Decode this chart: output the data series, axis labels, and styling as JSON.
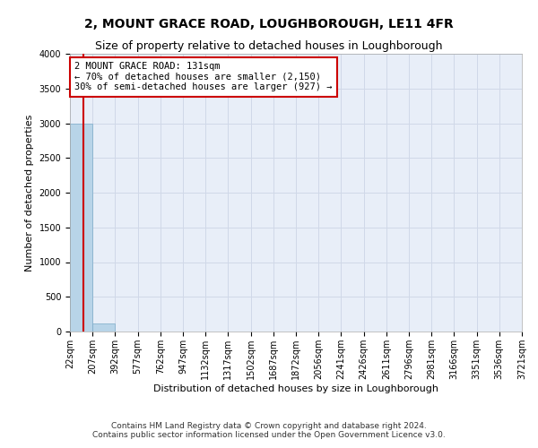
{
  "title": "2, MOUNT GRACE ROAD, LOUGHBOROUGH, LE11 4FR",
  "subtitle": "Size of property relative to detached houses in Loughborough",
  "xlabel": "Distribution of detached houses by size in Loughborough",
  "ylabel": "Number of detached properties",
  "footnote1": "Contains HM Land Registry data © Crown copyright and database right 2024.",
  "footnote2": "Contains public sector information licensed under the Open Government Licence v3.0.",
  "bin_edges": [
    22,
    207,
    392,
    577,
    762,
    947,
    1132,
    1317,
    1502,
    1687,
    1872,
    2056,
    2241,
    2426,
    2611,
    2796,
    2981,
    3166,
    3351,
    3536,
    3721
  ],
  "bin_labels": [
    "22sqm",
    "207sqm",
    "392sqm",
    "577sqm",
    "762sqm",
    "947sqm",
    "1132sqm",
    "1317sqm",
    "1502sqm",
    "1687sqm",
    "1872sqm",
    "2056sqm",
    "2241sqm",
    "2426sqm",
    "2611sqm",
    "2796sqm",
    "2981sqm",
    "3166sqm",
    "3351sqm",
    "3536sqm",
    "3721sqm"
  ],
  "bar_heights": [
    2990,
    115,
    5,
    2,
    1,
    0,
    0,
    0,
    0,
    0,
    0,
    0,
    0,
    0,
    0,
    0,
    0,
    0,
    0,
    0
  ],
  "bar_color": "#b8d4e8",
  "bar_edge_color": "#7baac8",
  "property_size": 131,
  "red_line_color": "#cc0000",
  "annotation_line1": "2 MOUNT GRACE ROAD: 131sqm",
  "annotation_line2": "← 70% of detached houses are smaller (2,150)",
  "annotation_line3": "30% of semi-detached houses are larger (927) →",
  "annotation_box_color": "#ffffff",
  "annotation_box_edge_color": "#cc0000",
  "ylim": [
    0,
    4000
  ],
  "yticks": [
    0,
    500,
    1000,
    1500,
    2000,
    2500,
    3000,
    3500,
    4000
  ],
  "grid_color": "#d0d8e8",
  "bg_color": "#e8eef8",
  "title_fontsize": 10,
  "subtitle_fontsize": 9,
  "axis_label_fontsize": 8,
  "tick_fontsize": 7,
  "annotation_fontsize": 7.5
}
